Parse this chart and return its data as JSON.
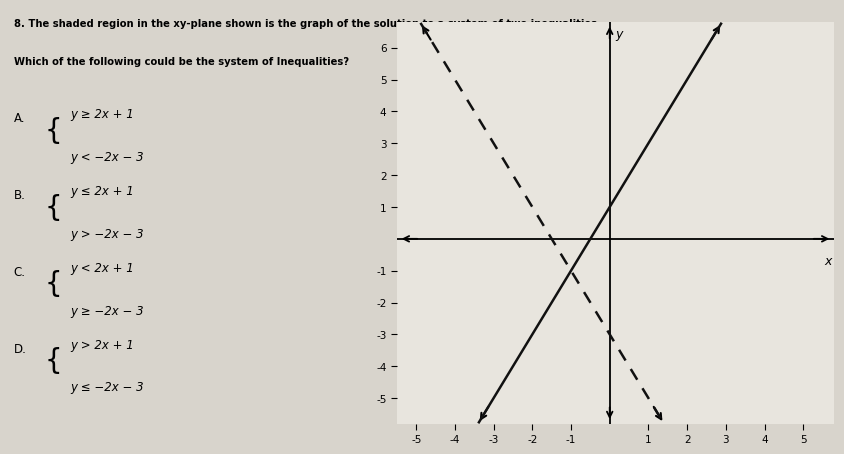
{
  "title_line1": "8. The shaded region in the xy-plane shown is the graph of the solution to a system of two inequalities.",
  "title_line2": "Which of the following could be the system of Inequalities?",
  "choices": [
    {
      "label": "A.",
      "ineq1": "y ≥ 2x + 1",
      "ineq2": "y < −2x − 3"
    },
    {
      "label": "B.",
      "ineq1": "y ≤ 2x + 1",
      "ineq2": "y > −2x − 3"
    },
    {
      "label": "C.",
      "ineq1": "y < 2x + 1",
      "ineq2": "y ≥ −2x − 3"
    },
    {
      "label": "D.",
      "ineq1": "y > 2x + 1",
      "ineq2": "y ≤ −2x − 3"
    }
  ],
  "line1": {
    "slope": 2,
    "intercept": 1,
    "style": "solid",
    "color": "#111111",
    "lw": 1.8
  },
  "line2": {
    "slope": -2,
    "intercept": -3,
    "style": "dashed",
    "color": "#111111",
    "lw": 1.8
  },
  "xlim": [
    -5.5,
    5.8
  ],
  "ylim": [
    -5.8,
    6.8
  ],
  "xticks": [
    -5,
    -4,
    -3,
    -2,
    -1,
    1,
    2,
    3,
    4,
    5
  ],
  "yticks": [
    -5,
    -4,
    -3,
    -2,
    -1,
    1,
    2,
    3,
    4,
    5,
    6
  ],
  "bg_color": "#d8d4cc",
  "graph_bg": "#e8e5de",
  "arrow_size": 10
}
